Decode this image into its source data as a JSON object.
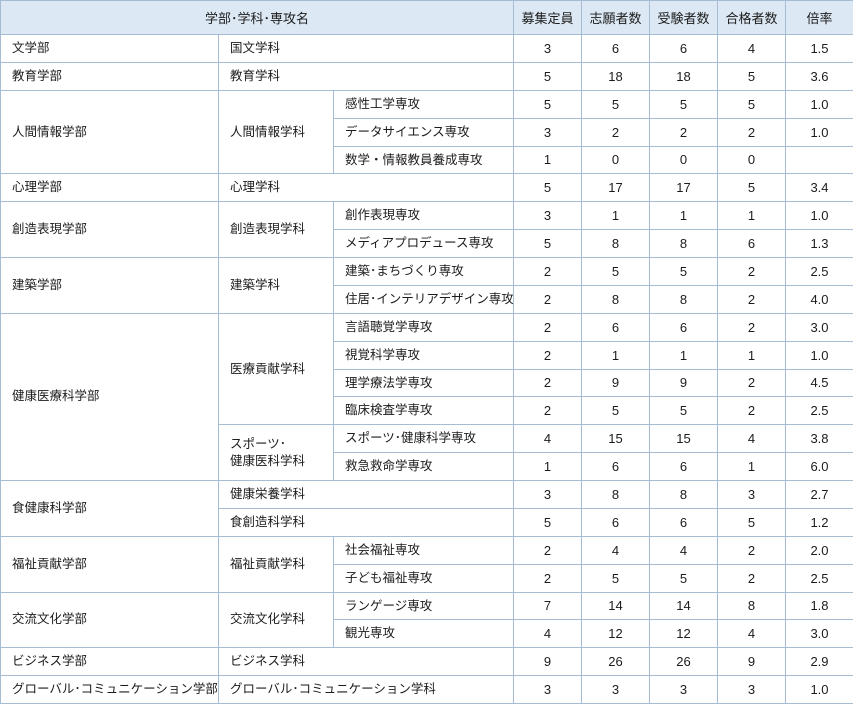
{
  "table": {
    "header": {
      "name": "学部･学科･専攻名",
      "cols": [
        "募集定員",
        "志願者数",
        "受験者数",
        "合格者数",
        "倍率"
      ]
    },
    "colors": {
      "header_bg": "#dce8f4",
      "border": "#a6bcd3",
      "text": "#1c1c1c"
    },
    "rows": [
      {
        "cells": [
          {
            "t": "文学部",
            "n": "faculty-cell"
          },
          {
            "t": "国文学科",
            "n": "department-cell",
            "cs": 2
          }
        ],
        "nums": [
          "3",
          "6",
          "6",
          "4",
          "1.5"
        ]
      },
      {
        "cells": [
          {
            "t": "教育学部",
            "n": "faculty-cell"
          },
          {
            "t": "教育学科",
            "n": "department-cell",
            "cs": 2
          }
        ],
        "nums": [
          "5",
          "18",
          "18",
          "5",
          "3.6"
        ]
      },
      {
        "cells": [
          {
            "t": "人間情報学部",
            "n": "faculty-cell",
            "rs": 3
          },
          {
            "t": "人間情報学科",
            "n": "department-cell",
            "rs": 3
          },
          {
            "t": "感性工学専攻",
            "n": "major-cell"
          }
        ],
        "nums": [
          "5",
          "5",
          "5",
          "5",
          "1.0"
        ]
      },
      {
        "cells": [
          {
            "t": "データサイエンス専攻",
            "n": "major-cell"
          }
        ],
        "nums": [
          "3",
          "2",
          "2",
          "2",
          "1.0"
        ]
      },
      {
        "cells": [
          {
            "t": "数学・情報教員養成専攻",
            "n": "major-cell"
          }
        ],
        "nums": [
          "1",
          "0",
          "0",
          "0",
          ""
        ]
      },
      {
        "cells": [
          {
            "t": "心理学部",
            "n": "faculty-cell"
          },
          {
            "t": "心理学科",
            "n": "department-cell",
            "cs": 2
          }
        ],
        "nums": [
          "5",
          "17",
          "17",
          "5",
          "3.4"
        ]
      },
      {
        "cells": [
          {
            "t": "創造表現学部",
            "n": "faculty-cell",
            "rs": 2
          },
          {
            "t": "創造表現学科",
            "n": "department-cell",
            "rs": 2
          },
          {
            "t": "創作表現専攻",
            "n": "major-cell"
          }
        ],
        "nums": [
          "3",
          "1",
          "1",
          "1",
          "1.0"
        ]
      },
      {
        "cells": [
          {
            "t": "メディアプロデュース専攻",
            "n": "major-cell"
          }
        ],
        "nums": [
          "5",
          "8",
          "8",
          "6",
          "1.3"
        ]
      },
      {
        "cells": [
          {
            "t": "建築学部",
            "n": "faculty-cell",
            "rs": 2
          },
          {
            "t": "建築学科",
            "n": "department-cell",
            "rs": 2
          },
          {
            "t": "建築･まちづくり専攻",
            "n": "major-cell"
          }
        ],
        "nums": [
          "2",
          "5",
          "5",
          "2",
          "2.5"
        ]
      },
      {
        "cells": [
          {
            "t": "住居･インテリアデザイン専攻",
            "n": "major-cell"
          }
        ],
        "nums": [
          "2",
          "8",
          "8",
          "2",
          "4.0"
        ]
      },
      {
        "cells": [
          {
            "t": "健康医療科学部",
            "n": "faculty-cell",
            "rs": 6
          },
          {
            "t": "医療貢献学科",
            "n": "department-cell",
            "rs": 4
          },
          {
            "t": "言語聴覚学専攻",
            "n": "major-cell"
          }
        ],
        "nums": [
          "2",
          "6",
          "6",
          "2",
          "3.0"
        ]
      },
      {
        "cells": [
          {
            "t": "視覚科学専攻",
            "n": "major-cell"
          }
        ],
        "nums": [
          "2",
          "1",
          "1",
          "1",
          "1.0"
        ]
      },
      {
        "cells": [
          {
            "t": "理学療法学専攻",
            "n": "major-cell"
          }
        ],
        "nums": [
          "2",
          "9",
          "9",
          "2",
          "4.5"
        ]
      },
      {
        "cells": [
          {
            "t": "臨床検査学専攻",
            "n": "major-cell"
          }
        ],
        "nums": [
          "2",
          "5",
          "5",
          "2",
          "2.5"
        ]
      },
      {
        "cells": [
          {
            "t": "スポーツ･\n健康医科学科",
            "n": "department-cell",
            "rs": 2
          },
          {
            "t": "スポーツ･健康科学専攻",
            "n": "major-cell"
          }
        ],
        "nums": [
          "4",
          "15",
          "15",
          "4",
          "3.8"
        ]
      },
      {
        "cells": [
          {
            "t": "救急救命学専攻",
            "n": "major-cell"
          }
        ],
        "nums": [
          "1",
          "6",
          "6",
          "1",
          "6.0"
        ]
      },
      {
        "cells": [
          {
            "t": "食健康科学部",
            "n": "faculty-cell",
            "rs": 2
          },
          {
            "t": "健康栄養学科",
            "n": "department-cell",
            "cs": 2
          }
        ],
        "nums": [
          "3",
          "8",
          "8",
          "3",
          "2.7"
        ]
      },
      {
        "cells": [
          {
            "t": "食創造科学科",
            "n": "department-cell",
            "cs": 2
          }
        ],
        "nums": [
          "5",
          "6",
          "6",
          "5",
          "1.2"
        ]
      },
      {
        "cells": [
          {
            "t": "福祉貢献学部",
            "n": "faculty-cell",
            "rs": 2
          },
          {
            "t": "福祉貢献学科",
            "n": "department-cell",
            "rs": 2
          },
          {
            "t": "社会福祉専攻",
            "n": "major-cell"
          }
        ],
        "nums": [
          "2",
          "4",
          "4",
          "2",
          "2.0"
        ]
      },
      {
        "cells": [
          {
            "t": "子ども福祉専攻",
            "n": "major-cell"
          }
        ],
        "nums": [
          "2",
          "5",
          "5",
          "2",
          "2.5"
        ]
      },
      {
        "cells": [
          {
            "t": "交流文化学部",
            "n": "faculty-cell",
            "rs": 2
          },
          {
            "t": "交流文化学科",
            "n": "department-cell",
            "rs": 2
          },
          {
            "t": "ランゲージ専攻",
            "n": "major-cell"
          }
        ],
        "nums": [
          "7",
          "14",
          "14",
          "8",
          "1.8"
        ]
      },
      {
        "cells": [
          {
            "t": "観光専攻",
            "n": "major-cell"
          }
        ],
        "nums": [
          "4",
          "12",
          "12",
          "4",
          "3.0"
        ]
      },
      {
        "cells": [
          {
            "t": "ビジネス学部",
            "n": "faculty-cell"
          },
          {
            "t": "ビジネス学科",
            "n": "department-cell",
            "cs": 2
          }
        ],
        "nums": [
          "9",
          "26",
          "26",
          "9",
          "2.9"
        ]
      },
      {
        "cells": [
          {
            "t": "グローバル･コミュニケーション学部",
            "n": "faculty-cell"
          },
          {
            "t": "グローバル･コミュニケーション学科",
            "n": "department-cell",
            "cs": 2
          }
        ],
        "nums": [
          "3",
          "3",
          "3",
          "3",
          "1.0"
        ]
      }
    ]
  }
}
